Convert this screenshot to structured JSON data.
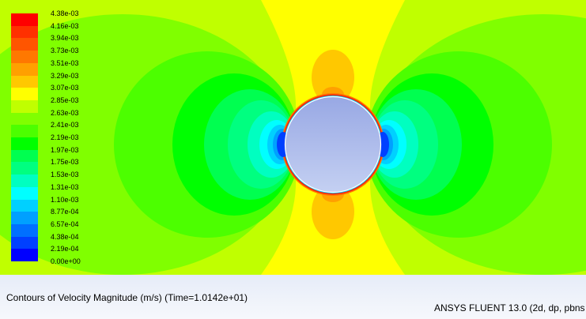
{
  "chart_data": {
    "type": "heatmap",
    "title": "Contours of Velocity Magnitude (m/s)  (Time=1.0142e+01)",
    "colorbar": {
      "labels": [
        "4.38e-03",
        "4.16e-03",
        "3.94e-03",
        "3.73e-03",
        "3.51e-03",
        "3.29e-03",
        "3.07e-03",
        "2.85e-03",
        "2.63e-03",
        "2.41e-03",
        "2.19e-03",
        "1.97e-03",
        "1.75e-03",
        "1.53e-03",
        "1.31e-03",
        "1.10e-03",
        "8.77e-04",
        "6.57e-04",
        "4.38e-04",
        "2.19e-04",
        "0.00e+00"
      ],
      "colors": [
        "#ff0000",
        "#ff3000",
        "#ff5500",
        "#ff7800",
        "#ffa000",
        "#ffc800",
        "#ffff00",
        "#c0ff00",
        "#80ff00",
        "#4cff00",
        "#00ff00",
        "#00ff50",
        "#00ff80",
        "#00ffc0",
        "#00ffff",
        "#00d0ff",
        "#00a0ff",
        "#0070ff",
        "#0040ff",
        "#0000ff"
      ],
      "range": [
        0,
        0.00438
      ]
    },
    "background_level_color": "#c0ff00",
    "obstacle": "cylinder"
  },
  "footer": {
    "title": "Contours of Velocity Magnitude (m/s)  (Time=1.0142e+01)",
    "product": "ANSYS FLUENT 13.0 (2d, dp, pbns"
  }
}
